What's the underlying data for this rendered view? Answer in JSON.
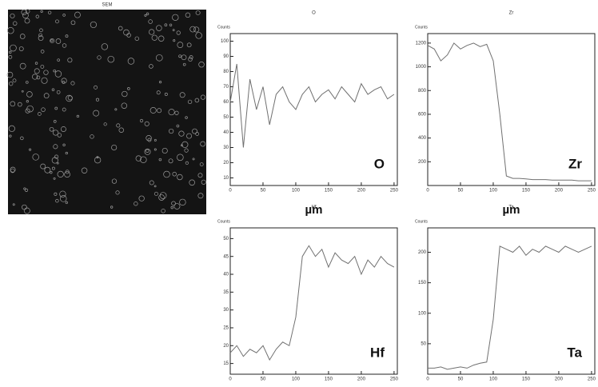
{
  "image": {
    "title": "SEM"
  },
  "chart_data": [
    {
      "type": "line",
      "title": "O",
      "ylabel": "Counts",
      "xlabel": "µm",
      "annotation": "O",
      "color": "#707070",
      "x": [
        0,
        10,
        20,
        30,
        40,
        50,
        60,
        70,
        80,
        90,
        100,
        110,
        120,
        130,
        140,
        150,
        160,
        170,
        180,
        190,
        200,
        210,
        220,
        230,
        240,
        250
      ],
      "values": [
        60,
        85,
        30,
        75,
        55,
        70,
        45,
        65,
        70,
        60,
        55,
        65,
        70,
        60,
        65,
        68,
        62,
        70,
        65,
        60,
        72,
        65,
        68,
        70,
        62,
        65
      ],
      "xlim": [
        0,
        255
      ],
      "xticks": [
        0,
        50,
        100,
        150,
        200,
        250
      ],
      "ylim": [
        5,
        105
      ],
      "yticks": [
        10,
        20,
        30,
        40,
        50,
        60,
        70,
        80,
        90,
        100
      ]
    },
    {
      "type": "line",
      "title": "Zr",
      "ylabel": "Counts",
      "xlabel": "µm",
      "annotation": "Zr",
      "color": "#707070",
      "x": [
        0,
        10,
        20,
        30,
        40,
        50,
        60,
        70,
        80,
        90,
        100,
        110,
        120,
        130,
        140,
        150,
        160,
        170,
        180,
        190,
        200,
        210,
        220,
        230,
        240,
        250
      ],
      "values": [
        1180,
        1150,
        1050,
        1100,
        1200,
        1150,
        1180,
        1200,
        1170,
        1190,
        1050,
        600,
        80,
        60,
        60,
        55,
        50,
        50,
        50,
        45,
        45,
        45,
        45,
        40,
        40,
        40
      ],
      "xlim": [
        0,
        255
      ],
      "xticks": [
        0,
        50,
        100,
        150,
        200,
        250
      ],
      "ylim": [
        0,
        1280
      ],
      "yticks": [
        200,
        400,
        600,
        800,
        1000,
        1200
      ]
    },
    {
      "type": "line",
      "title": "Hf",
      "ylabel": "Counts",
      "annotation": "Hf",
      "color": "#707070",
      "x": [
        0,
        10,
        20,
        30,
        40,
        50,
        60,
        70,
        80,
        90,
        100,
        110,
        120,
        130,
        140,
        150,
        160,
        170,
        180,
        190,
        200,
        210,
        220,
        230,
        240,
        250
      ],
      "values": [
        18,
        20,
        17,
        19,
        18,
        20,
        16,
        19,
        21,
        20,
        28,
        45,
        48,
        45,
        47,
        42,
        46,
        44,
        43,
        45,
        40,
        44,
        42,
        45,
        43,
        42
      ],
      "xlim": [
        0,
        255
      ],
      "xticks": [
        0,
        50,
        100,
        150,
        200,
        250
      ],
      "ylim": [
        12,
        53
      ],
      "yticks": [
        15,
        20,
        25,
        30,
        35,
        40,
        45,
        50
      ]
    },
    {
      "type": "line",
      "title": "Ta",
      "ylabel": "Counts",
      "annotation": "Ta",
      "color": "#707070",
      "x": [
        0,
        10,
        20,
        30,
        40,
        50,
        60,
        70,
        80,
        90,
        100,
        110,
        120,
        130,
        140,
        150,
        160,
        170,
        180,
        190,
        200,
        210,
        220,
        230,
        240,
        250
      ],
      "values": [
        10,
        10,
        12,
        8,
        10,
        12,
        10,
        15,
        18,
        20,
        90,
        210,
        205,
        200,
        210,
        195,
        205,
        200,
        210,
        205,
        200,
        210,
        205,
        200,
        205,
        210
      ],
      "xlim": [
        0,
        255
      ],
      "xticks": [
        0,
        50,
        100,
        150,
        200,
        250
      ],
      "ylim": [
        0,
        240
      ],
      "yticks": [
        50,
        100,
        150,
        200
      ]
    }
  ]
}
